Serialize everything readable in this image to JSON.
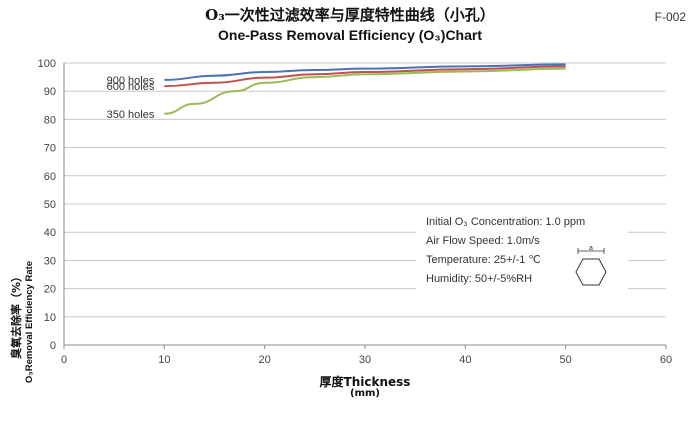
{
  "header": {
    "title_cn": "O₃一次性过滤效率与厚度特性曲线（小孔）",
    "title_en": "One-Pass  Removal Efficiency (O₃)Chart",
    "doc_code": "F-002"
  },
  "conditions": {
    "lines": [
      "Initial O₃ Concentration: 1.0 ppm",
      "Air Flow Speed: 1.0m/s",
      "Temperature: 25+/-1 ℃",
      "Humidity: 50+/-5%RH"
    ],
    "hex_label": "a"
  },
  "chart_data": {
    "type": "line",
    "title": "One-Pass  Removal Efficiency (O₃)Chart",
    "xlabel": "厚度Thickness",
    "xunit": "(mm)",
    "ylabel_cn": "臭氧去除率（%）",
    "ylabel_en": "O₃Removal Efficiency Rate",
    "xlim": [
      0,
      60
    ],
    "ylim": [
      0,
      100
    ],
    "xticks": [
      0,
      10,
      20,
      30,
      40,
      50,
      60
    ],
    "yticks": [
      0,
      10,
      20,
      30,
      40,
      50,
      60,
      70,
      80,
      90,
      100
    ],
    "grid": "horizontal",
    "series": [
      {
        "name": "900 holes",
        "color": "#4a72b8",
        "x": [
          10,
          15,
          20,
          25,
          30,
          40,
          50
        ],
        "y": [
          94,
          95.5,
          96.8,
          97.5,
          98,
          98.8,
          99.5
        ]
      },
      {
        "name": "600 holes",
        "color": "#c0504d",
        "x": [
          10,
          15,
          20,
          25,
          30,
          40,
          50
        ],
        "y": [
          91.8,
          93,
          94.8,
          96,
          96.8,
          97.8,
          98.8
        ]
      },
      {
        "name": "350 holes",
        "color": "#9bbb59",
        "x": [
          10,
          13,
          17,
          20,
          25,
          30,
          40,
          50
        ],
        "y": [
          82,
          85.5,
          90,
          93,
          95,
          96,
          97,
          98
        ]
      }
    ]
  }
}
